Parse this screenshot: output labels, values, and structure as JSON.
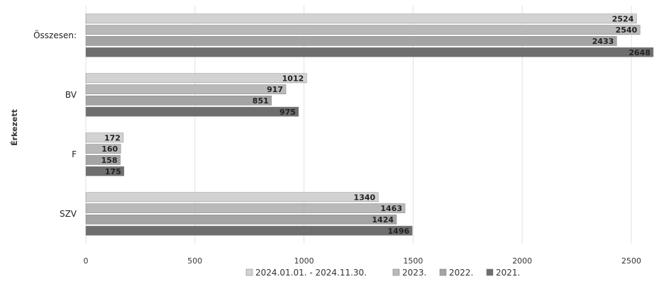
{
  "chart_data": {
    "type": "bar",
    "orientation": "horizontal",
    "ylabel": "Érkezett",
    "categories": [
      "Összesen:",
      "BV",
      "F",
      "SZV"
    ],
    "series": [
      {
        "name": "2024.01.01. - 2024.11.30.",
        "values": [
          2524,
          1012,
          172,
          1340
        ],
        "color": "#d2d2d2"
      },
      {
        "name": "2023.",
        "values": [
          2540,
          917,
          160,
          1463
        ],
        "color": "#b9b9b9"
      },
      {
        "name": "2022.",
        "values": [
          2433,
          851,
          158,
          1424
        ],
        "color": "#a4a4a4"
      },
      {
        "name": "2021.",
        "values": [
          2648,
          975,
          175,
          1496
        ],
        "color": "#6e6e6e"
      }
    ],
    "data_labels": [
      [
        "2524",
        "1012",
        "172",
        "1340"
      ],
      [
        "2540",
        "917",
        "160",
        "1463"
      ],
      [
        "2433",
        "851",
        "158",
        "1424"
      ],
      [
        "2648",
        "975",
        "175",
        "1496"
      ]
    ],
    "xlim": [
      0,
      2500
    ],
    "x_ticks": [
      0,
      500,
      1000,
      1500,
      2000,
      2500
    ],
    "x_tick_labels": [
      "0",
      "500",
      "1000",
      "1500",
      "2000",
      "2500"
    ],
    "grid": true,
    "legend_position": "bottom"
  }
}
